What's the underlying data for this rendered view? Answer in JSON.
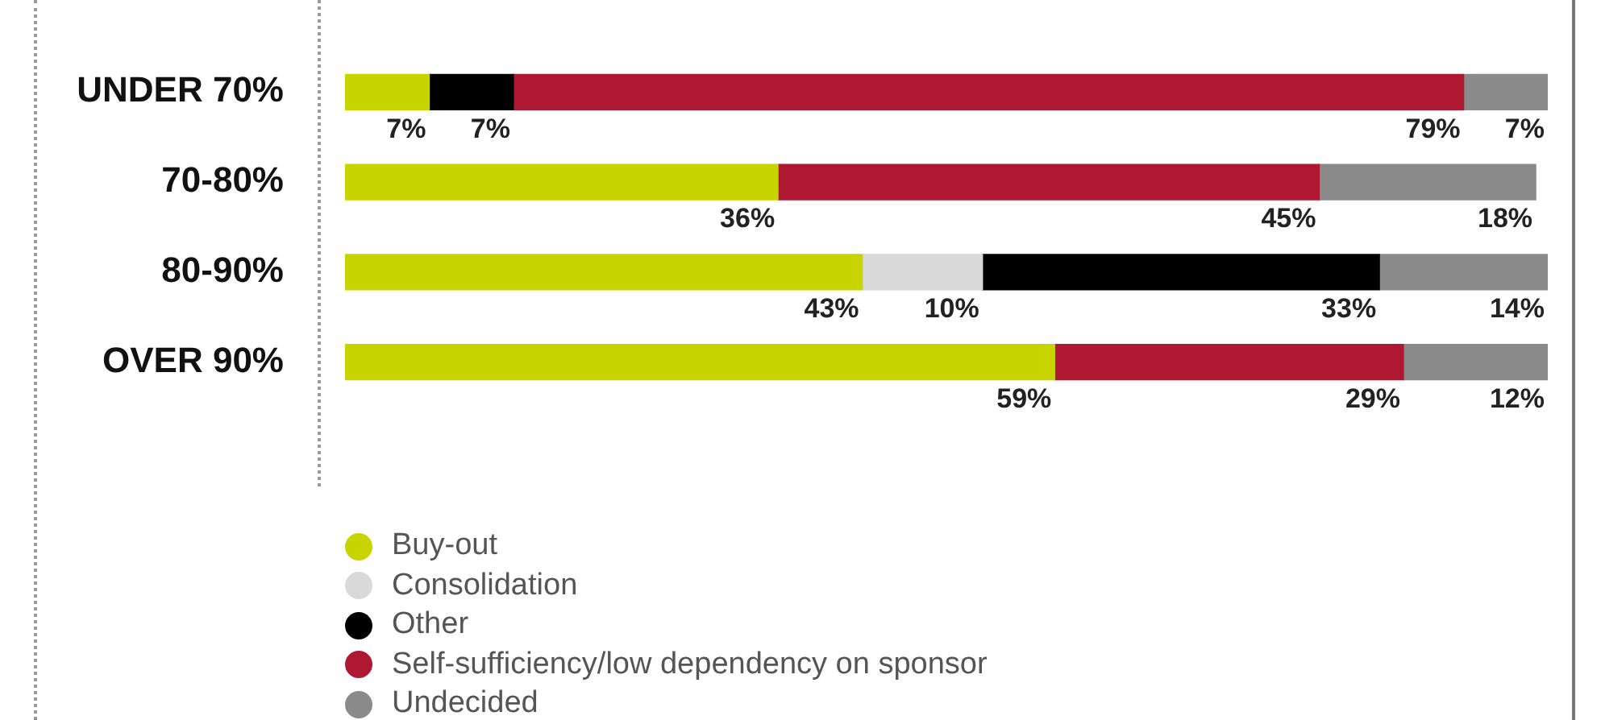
{
  "chart_data": {
    "type": "bar",
    "orientation": "horizontal",
    "stacked": true,
    "categories": [
      "UNDER 70%",
      "70-80%",
      "80-90%",
      "OVER 90%"
    ],
    "xlim": [
      0,
      100
    ],
    "tick_labels": "y",
    "grid": false,
    "legend": "bottom left",
    "series": [
      {
        "name": "Buy-out",
        "color": "#c8d400",
        "values": [
          7,
          36,
          43,
          59
        ],
        "value_labels": [
          "7%",
          "36%",
          "43%",
          "59%"
        ]
      },
      {
        "name": "Consolidation",
        "color": "#d9d9d9",
        "values": [
          null,
          null,
          10,
          null
        ],
        "value_labels": [
          null,
          null,
          "10%",
          null
        ]
      },
      {
        "name": "Other",
        "color": "#000000",
        "values": [
          7,
          null,
          33,
          null
        ],
        "value_labels": [
          "7%",
          null,
          "33%",
          null
        ]
      },
      {
        "name": "Self-sufficiency/low dependency on sponsor",
        "color": "#ae1830",
        "values": [
          79,
          45,
          null,
          29
        ],
        "value_labels": [
          "79%",
          "45%",
          null,
          "29%"
        ]
      },
      {
        "name": "Undecided",
        "color": "#8a8a8a",
        "values": [
          7,
          18,
          14,
          12
        ],
        "value_labels": [
          "7%",
          "18%",
          "14%",
          "12%"
        ]
      }
    ]
  }
}
